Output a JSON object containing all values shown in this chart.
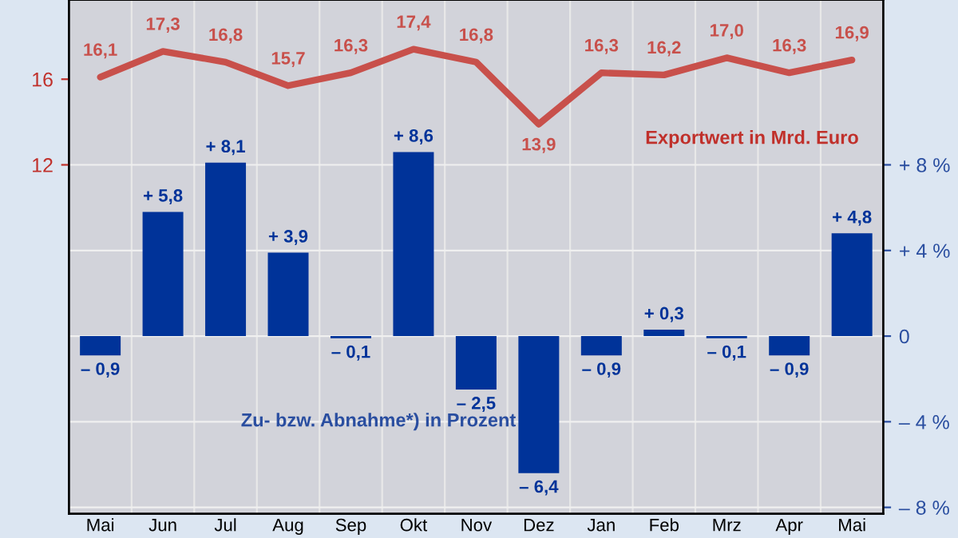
{
  "chart_data": {
    "type": "bar",
    "categories": [
      "Mai",
      "Jun",
      "Jul",
      "Aug",
      "Sep",
      "Okt",
      "Nov",
      "Dez",
      "Jan",
      "Feb",
      "Mrz",
      "Apr",
      "Mai"
    ],
    "series": [
      {
        "type": "line",
        "color": "#c8504b",
        "axis": "y",
        "values": [
          16.1,
          17.3,
          16.8,
          15.7,
          16.3,
          17.4,
          16.8,
          13.9,
          16.3,
          16.2,
          17.0,
          16.3,
          16.9
        ],
        "value_labels": [
          "16,1",
          "17,3",
          "16,8",
          "15,7",
          "16,3",
          "17,4",
          "16,8",
          "13,9",
          "16,3",
          "16,2",
          "17,0",
          "16,3",
          "16,9"
        ]
      },
      {
        "color": "#003399",
        "axis": "y2",
        "values": [
          -0.9,
          5.8,
          8.1,
          3.9,
          -0.1,
          8.6,
          -2.5,
          -6.4,
          -0.9,
          0.3,
          -0.1,
          -0.9,
          4.8
        ],
        "value_labels": [
          "– 0,9",
          "+ 5,8",
          "+ 8,1",
          "+ 3,9",
          "– 0,1",
          "+ 8,6",
          "– 2,5",
          "– 6,4",
          "– 0,9",
          "+ 0,3",
          "– 0,1",
          "– 0,9",
          "+ 4,8"
        ]
      }
    ],
    "ylim": [
      -4.3,
      19.7
    ],
    "yticks": [
      12,
      16
    ],
    "y2lim": [
      -8.3,
      15.7
    ],
    "y2ticks": [
      {
        "value": -8,
        "label": "– 8 %"
      },
      {
        "value": -4,
        "label": "– 4 %"
      },
      0,
      {
        "value": 4,
        "label": "+ 4 %"
      },
      {
        "value": 8,
        "label": "+ 8 %"
      }
    ],
    "grid": "y2",
    "annotations": [
      "Exportwert in Mrd. Euro",
      "Zu- bzw. Abnahme*) in Prozent"
    ]
  }
}
